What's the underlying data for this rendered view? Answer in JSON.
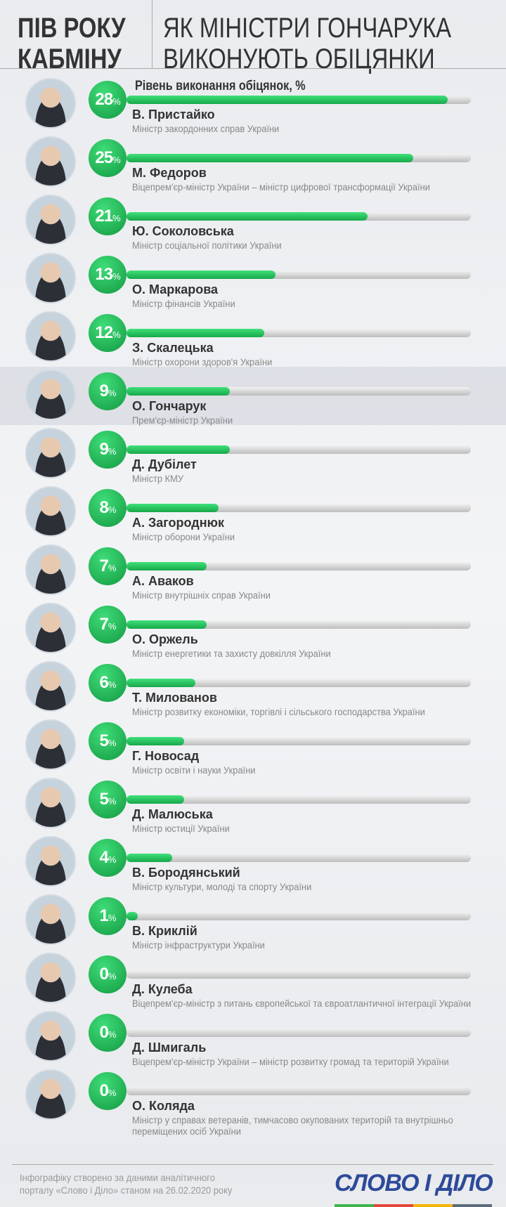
{
  "header": {
    "left_line1": "ПІВ РОКУ",
    "left_line2": "КАБМІНУ",
    "right_line1": "ЯК МІНІСТРИ ГОНЧАРУКА",
    "right_line2": "ВИКОНУЮТЬ ОБІЦЯНКИ"
  },
  "chart_data": {
    "type": "bar",
    "orientation": "horizontal",
    "title": "Рівень виконання обіцянок, %",
    "xlim": [
      0,
      30
    ],
    "highlighted": "О. Гончарук",
    "categories": [
      "В. Пристайко",
      "М. Федоров",
      "Ю. Соколовська",
      "О. Маркарова",
      "З. Скалецька",
      "О. Гончарук",
      "Д. Дубілет",
      "А. Загороднюк",
      "А. Аваков",
      "О. Оржель",
      "Т. Милованов",
      "Г. Новосад",
      "Д. Малюська",
      "В. Бородянський",
      "В. Криклій",
      "Д. Кулеба",
      "Д. Шмигаль",
      "О. Коляда"
    ],
    "values": [
      28,
      25,
      21,
      13,
      12,
      9,
      9,
      8,
      7,
      7,
      6,
      5,
      5,
      4,
      1,
      0,
      0,
      0
    ],
    "roles": [
      "Міністр закордонних справ України",
      "Віцепрем'єр-міністр України – міністр цифрової трансформації України",
      "Міністр соціальної політики України",
      "Міністр фінансів України",
      "Міністр охорони здоров'я України",
      "Прем'єр-міністр України",
      "Міністр КМУ",
      "Міністр оборони України",
      "Міністр внутрішніх справ України",
      "Міністр енергетики та захисту довкілля України",
      "Міністр розвитку економіки, торгівлі і сільського господарства України",
      "Міністр освіти і науки України",
      "Міністр юстиції України",
      "Міністр культури, молоді та спорту України",
      "Міністр інфраструктури України",
      "Віцепрем'єр-міністр з питань європейської та євроатлантичної інтеграції України",
      "Віцепрем'єр-міністр України – міністр розвитку громад та територій України",
      "Міністр у справах ветеранів, тимчасово окупованих територій та внутрішньо переміщених осіб України"
    ],
    "unit": "%",
    "colors": {
      "bar": "#22c55e",
      "track": "#cccccc"
    }
  },
  "footer": {
    "line1": "Інфографіку створено за даними аналітичного",
    "line2": "порталу «Слово і Діло» станом на 26.02.2020 року",
    "logo": "СЛОВО І ДІЛО"
  }
}
